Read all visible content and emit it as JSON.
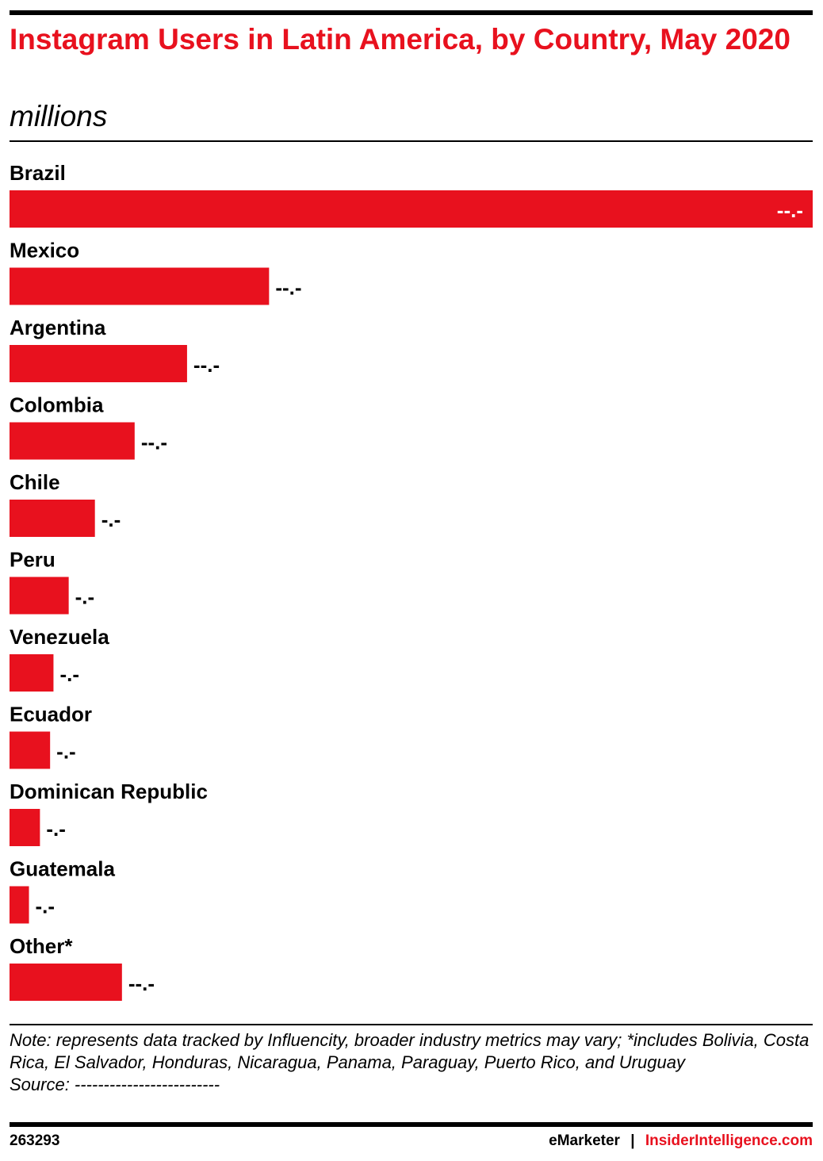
{
  "chart_data": {
    "type": "bar",
    "orientation": "horizontal",
    "title": "Instagram Users in Latin America, by Country, May 2020",
    "subtitle": "millions",
    "categories": [
      "Brazil",
      "Mexico",
      "Argentina",
      "Colombia",
      "Chile",
      "Peru",
      "Venezuela",
      "Ecuador",
      "Dominican Republic",
      "Guatemala",
      "Other*"
    ],
    "values": [
      95,
      30.7,
      21,
      14.8,
      10.1,
      7,
      5.2,
      4.8,
      3.6,
      2.3,
      13.3
    ],
    "value_labels": [
      "--.-",
      "--.-",
      "--.-",
      "--.-",
      "-.-",
      "-.-",
      "-.-",
      "-.-",
      "-.-",
      "-.-",
      "--.-"
    ],
    "color": "#e8111e",
    "note": "Note: represents data tracked by Influencity, broader industry metrics may vary; *includes Bolivia, Costa Rica, El Salvador, Honduras, Nicaragua, Panama, Paraguay, Puerto Rico, and Uruguay",
    "source": "Source: -------------------------"
  },
  "footer": {
    "id": "263293",
    "brand": "eMarketer",
    "separator": "|",
    "site": "InsiderIntelligence.com"
  }
}
